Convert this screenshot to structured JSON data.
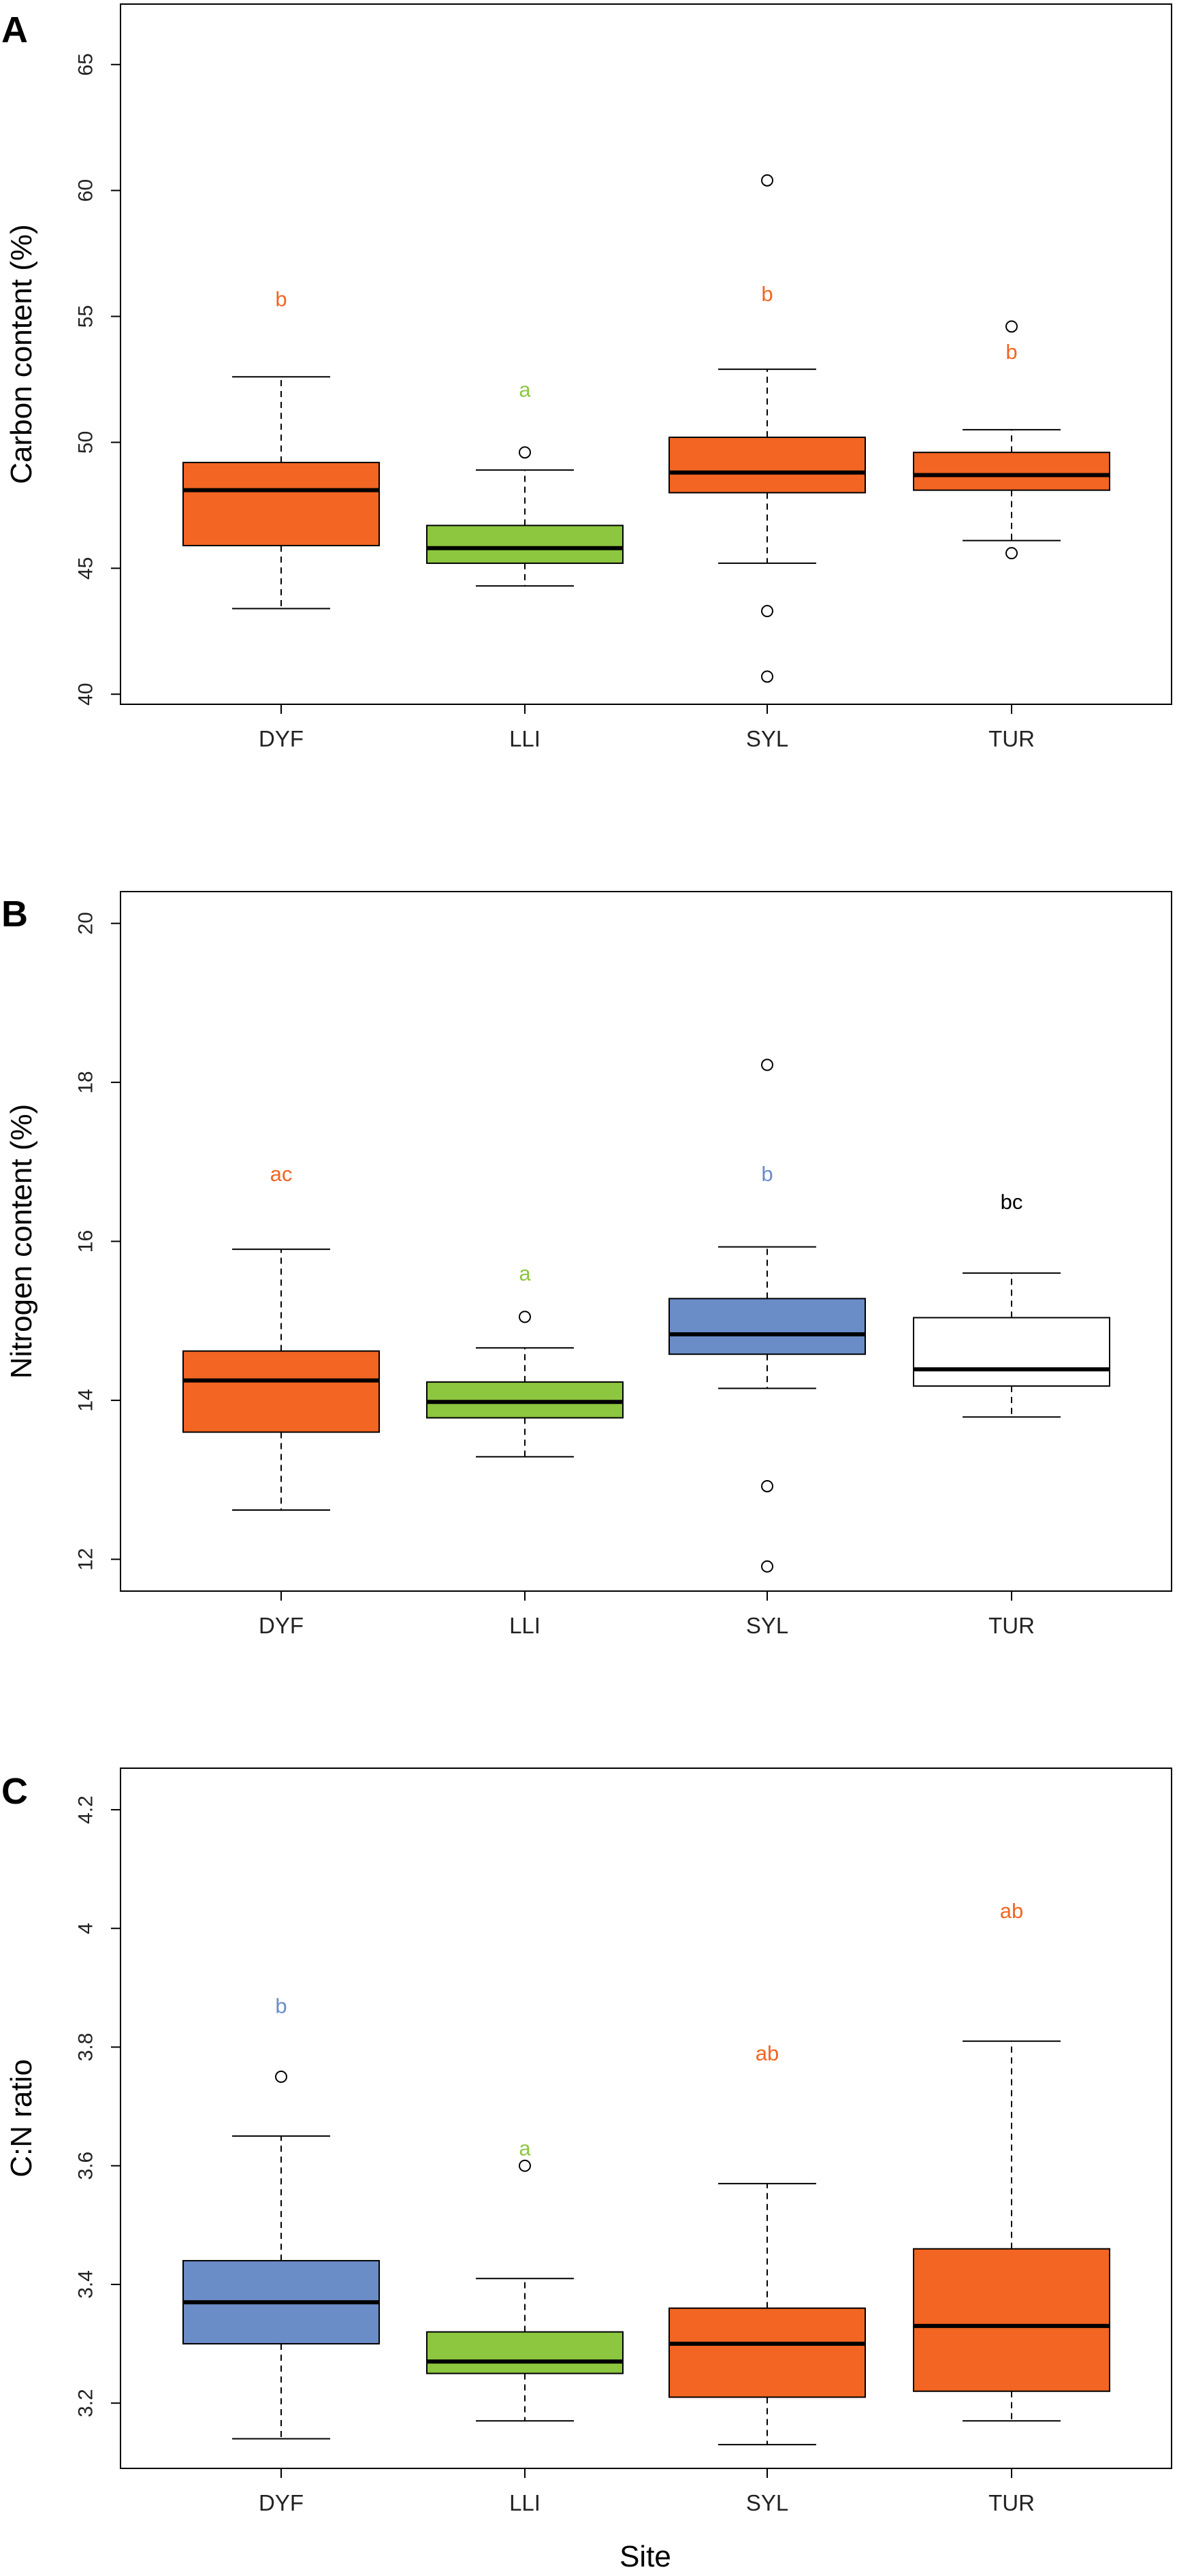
{
  "figure": {
    "x_axis_label": "Site",
    "colors": {
      "orange": "#F26522",
      "green": "#8DC63F",
      "blue": "#6A8CC7",
      "white": "#FFFFFF",
      "black": "#000000"
    }
  },
  "chart_data": [
    {
      "type": "box",
      "panel": "A",
      "ylabel": "Carbon content (%)",
      "xlabel": "",
      "ylim": [
        39.6,
        67.4
      ],
      "yticks": [
        40,
        45,
        50,
        55,
        60,
        65
      ],
      "categories": [
        "DYF",
        "LLI",
        "SYL",
        "TUR"
      ],
      "boxes": [
        {
          "site": "DYF",
          "q1": 45.9,
          "median": 48.1,
          "q3": 49.2,
          "whisker_low": 43.4,
          "whisker_high": 52.6,
          "outliers": [],
          "letter": "b",
          "letter_y": 55.7,
          "fill": "orange",
          "letter_color": "orange"
        },
        {
          "site": "LLI",
          "q1": 45.2,
          "median": 45.8,
          "q3": 46.7,
          "whisker_low": 44.3,
          "whisker_high": 48.9,
          "outliers": [
            49.6
          ],
          "letter": "a",
          "letter_y": 52.1,
          "fill": "green",
          "letter_color": "green"
        },
        {
          "site": "SYL",
          "q1": 48.0,
          "median": 48.8,
          "q3": 50.2,
          "whisker_low": 45.2,
          "whisker_high": 52.9,
          "outliers": [
            60.4,
            43.3,
            40.7
          ],
          "letter": "b",
          "letter_y": 55.9,
          "fill": "orange",
          "letter_color": "orange"
        },
        {
          "site": "TUR",
          "q1": 48.1,
          "median": 48.7,
          "q3": 49.6,
          "whisker_low": 46.1,
          "whisker_high": 50.5,
          "outliers": [
            54.6,
            45.6
          ],
          "letter": "b",
          "letter_y": 53.6,
          "fill": "orange",
          "letter_color": "orange"
        }
      ]
    },
    {
      "type": "box",
      "panel": "B",
      "ylabel": "Nitrogen content (%)",
      "xlabel": "",
      "ylim": [
        11.6,
        20.4
      ],
      "yticks": [
        12,
        14,
        16,
        18,
        20
      ],
      "categories": [
        "DYF",
        "LLI",
        "SYL",
        "TUR"
      ],
      "boxes": [
        {
          "site": "DYF",
          "q1": 13.6,
          "median": 14.25,
          "q3": 14.62,
          "whisker_low": 12.62,
          "whisker_high": 15.9,
          "outliers": [],
          "letter": "ac",
          "letter_y": 16.85,
          "fill": "orange",
          "letter_color": "orange"
        },
        {
          "site": "LLI",
          "q1": 13.78,
          "median": 13.98,
          "q3": 14.23,
          "whisker_low": 13.29,
          "whisker_high": 14.66,
          "outliers": [
            15.05
          ],
          "letter": "a",
          "letter_y": 15.6,
          "fill": "green",
          "letter_color": "green"
        },
        {
          "site": "SYL",
          "q1": 14.58,
          "median": 14.83,
          "q3": 15.28,
          "whisker_low": 14.15,
          "whisker_high": 15.93,
          "outliers": [
            18.22,
            12.92,
            11.91
          ],
          "letter": "b",
          "letter_y": 16.85,
          "fill": "blue",
          "letter_color": "blue"
        },
        {
          "site": "TUR",
          "q1": 14.18,
          "median": 14.39,
          "q3": 15.04,
          "whisker_low": 13.79,
          "whisker_high": 15.6,
          "outliers": [],
          "letter": "bc",
          "letter_y": 16.5,
          "fill": "white",
          "letter_color": "black"
        }
      ]
    },
    {
      "type": "box",
      "panel": "C",
      "ylabel": "C:N ratio",
      "xlabel": "Site",
      "ylim": [
        3.09,
        4.27
      ],
      "yticks": [
        3.2,
        3.4,
        3.6,
        3.8,
        4.0,
        4.2
      ],
      "categories": [
        "DYF",
        "LLI",
        "SYL",
        "TUR"
      ],
      "boxes": [
        {
          "site": "DYF",
          "q1": 3.3,
          "median": 3.37,
          "q3": 3.44,
          "whisker_low": 3.14,
          "whisker_high": 3.65,
          "outliers": [
            3.75
          ],
          "letter": "b",
          "letter_y": 3.87,
          "fill": "blue",
          "letter_color": "blue"
        },
        {
          "site": "LLI",
          "q1": 3.25,
          "median": 3.27,
          "q3": 3.32,
          "whisker_low": 3.17,
          "whisker_high": 3.41,
          "outliers": [
            3.6
          ],
          "letter": "a",
          "letter_y": 3.63,
          "fill": "green",
          "letter_color": "green"
        },
        {
          "site": "SYL",
          "q1": 3.21,
          "median": 3.3,
          "q3": 3.36,
          "whisker_low": 3.13,
          "whisker_high": 3.57,
          "outliers": [],
          "letter": "ab",
          "letter_y": 3.79,
          "fill": "orange",
          "letter_color": "orange"
        },
        {
          "site": "TUR",
          "q1": 3.22,
          "median": 3.33,
          "q3": 3.46,
          "whisker_low": 3.17,
          "whisker_high": 3.81,
          "outliers": [],
          "letter": "ab",
          "letter_y": 4.03,
          "fill": "orange",
          "letter_color": "orange"
        }
      ]
    }
  ]
}
